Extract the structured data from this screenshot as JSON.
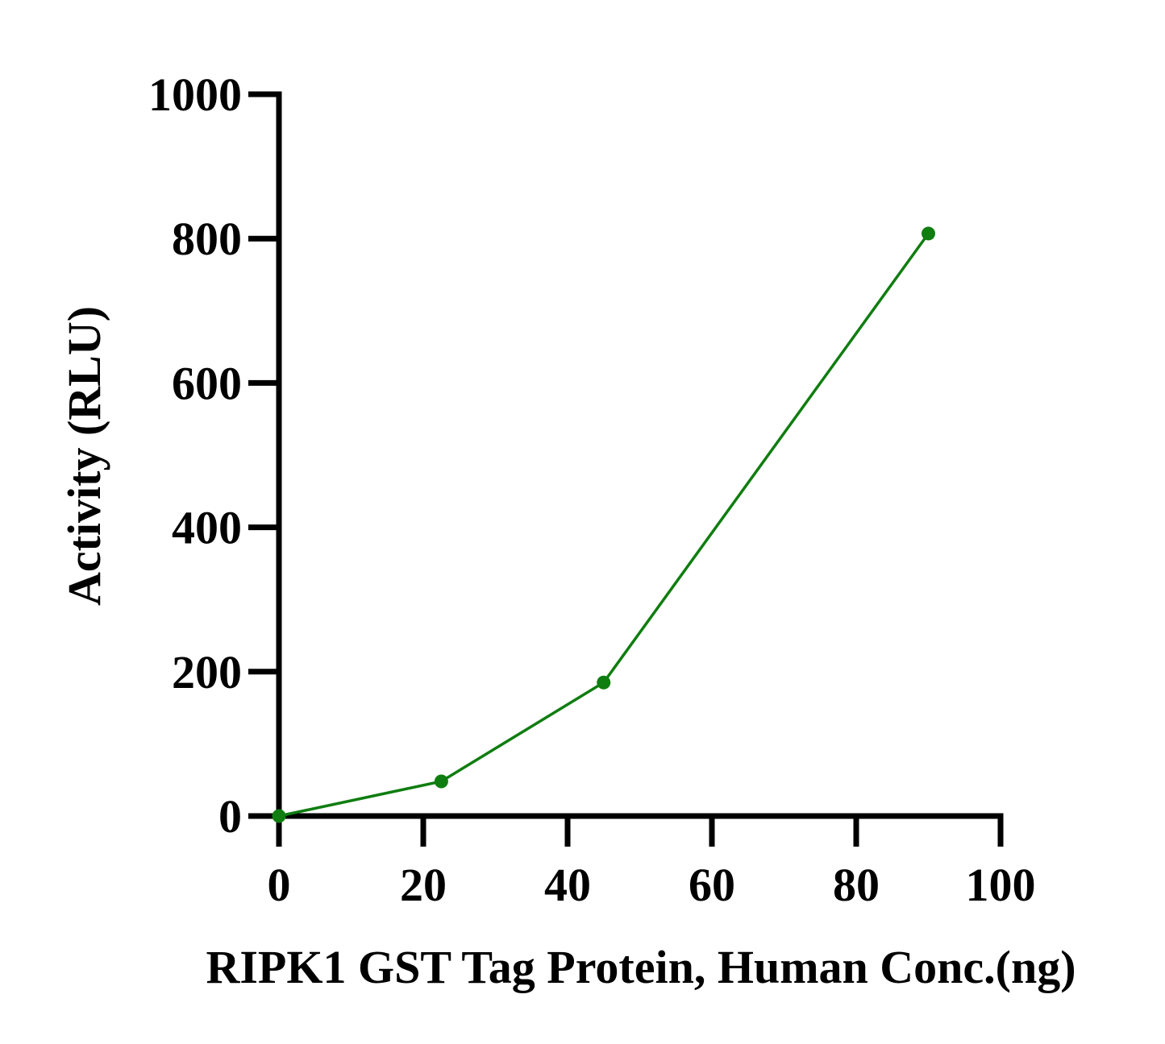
{
  "chart_data": {
    "type": "line",
    "xlabel": "RIPK1 GST Tag Protein, Human Conc.(ng)",
    "ylabel": "Activity (RLU)",
    "xlim": [
      0,
      100
    ],
    "ylim": [
      0,
      1000
    ],
    "xticks": [
      "0",
      "20",
      "40",
      "60",
      "80",
      "100"
    ],
    "yticks": [
      "0",
      "200",
      "400",
      "600",
      "800",
      "1000"
    ],
    "grid": false,
    "legend": "none",
    "series": [
      {
        "color": "#0f7d10",
        "x": [
          0,
          22.5,
          45,
          90
        ],
        "y": [
          0,
          48,
          185,
          807
        ]
      }
    ]
  }
}
